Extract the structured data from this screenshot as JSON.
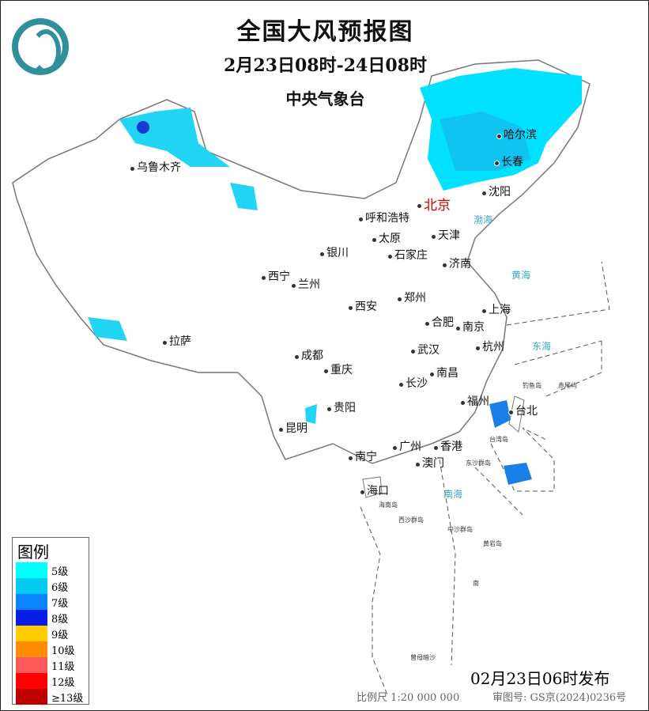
{
  "header": {
    "title": "全国大风预报图",
    "period": "2月23日08时-24日08时",
    "issuer": "中央气象台"
  },
  "cities": [
    "乌鲁木齐",
    "哈尔滨",
    "长春",
    "沈阳",
    "北京",
    "天津",
    "呼和浩特",
    "太原",
    "石家庄",
    "银川",
    "济南",
    "西宁",
    "兰州",
    "郑州",
    "西安",
    "合肥",
    "南京",
    "上海",
    "杭州",
    "拉萨",
    "成都",
    "武汉",
    "重庆",
    "南昌",
    "长沙",
    "福州",
    "台北",
    "贵阳",
    "昆明",
    "广州",
    "香港",
    "澳门",
    "南宁",
    "海口"
  ],
  "seas": [
    "渤海",
    "黄海",
    "东海",
    "南海"
  ],
  "islands": [
    "台湾岛",
    "海南岛",
    "东沙群岛",
    "西沙群岛",
    "中沙群岛",
    "黄岩岛",
    "钓鱼岛",
    "赤尾屿",
    "南",
    "曾母暗沙"
  ],
  "legend": {
    "title": "图例",
    "items": [
      {
        "label": "5级",
        "color": "#00ffff"
      },
      {
        "label": "6级",
        "color": "#00ccf0"
      },
      {
        "label": "7级",
        "color": "#0a84ff"
      },
      {
        "label": "8级",
        "color": "#0a1de6"
      },
      {
        "label": "9级",
        "color": "#ffcc00"
      },
      {
        "label": "10级",
        "color": "#ff8c00"
      },
      {
        "label": "11级",
        "color": "#ff5a5a"
      },
      {
        "label": "12级",
        "color": "#ff0000"
      },
      {
        "label": "≥13级",
        "color": "#c00000"
      }
    ]
  },
  "footer": {
    "issued": "02月23日06时发布",
    "scale": "比例尺 1:20 000 000",
    "approval": "审图号: GS京(2024)0236号"
  }
}
